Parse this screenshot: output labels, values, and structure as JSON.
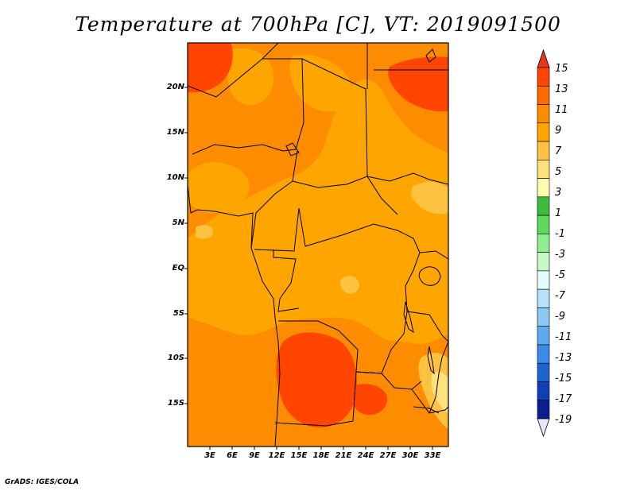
{
  "title": "Temperature at 700hPa [C], VT: 2019091500",
  "credit": "GrADS: IGES/COLA",
  "map": {
    "lat_labels": [
      "20N",
      "15N",
      "10N",
      "5N",
      "EQ",
      "5S",
      "10S",
      "15S"
    ],
    "lon_labels": [
      "3E",
      "6E",
      "9E",
      "12E",
      "15E",
      "18E",
      "21E",
      "24E",
      "27E",
      "30E",
      "33E"
    ],
    "lat_range": [
      -19.5,
      24.5
    ],
    "lon_range": [
      0,
      35.5
    ]
  },
  "colorbar": {
    "labels": [
      "15",
      "13",
      "11",
      "9",
      "7",
      "5",
      "3",
      "1",
      "-1",
      "-3",
      "-5",
      "-7",
      "-9",
      "-11",
      "-13",
      "-15",
      "-17",
      "-19"
    ],
    "colors": [
      "#ff4500",
      "#fe6a00",
      "#fe8c00",
      "#ffa500",
      "#ffc140",
      "#fde27c",
      "#fffbb0",
      "#3cbc3c",
      "#5fd65f",
      "#8eef8e",
      "#c8f8c8",
      "#e6fbfb",
      "#b7e1f9",
      "#8cc9f5",
      "#5fa9ee",
      "#3a8ae6",
      "#1e63d2",
      "#1040b8",
      "#0a1e8c"
    ],
    "top_color": "#e6371b",
    "bottom_color": "#e8e6fb"
  }
}
